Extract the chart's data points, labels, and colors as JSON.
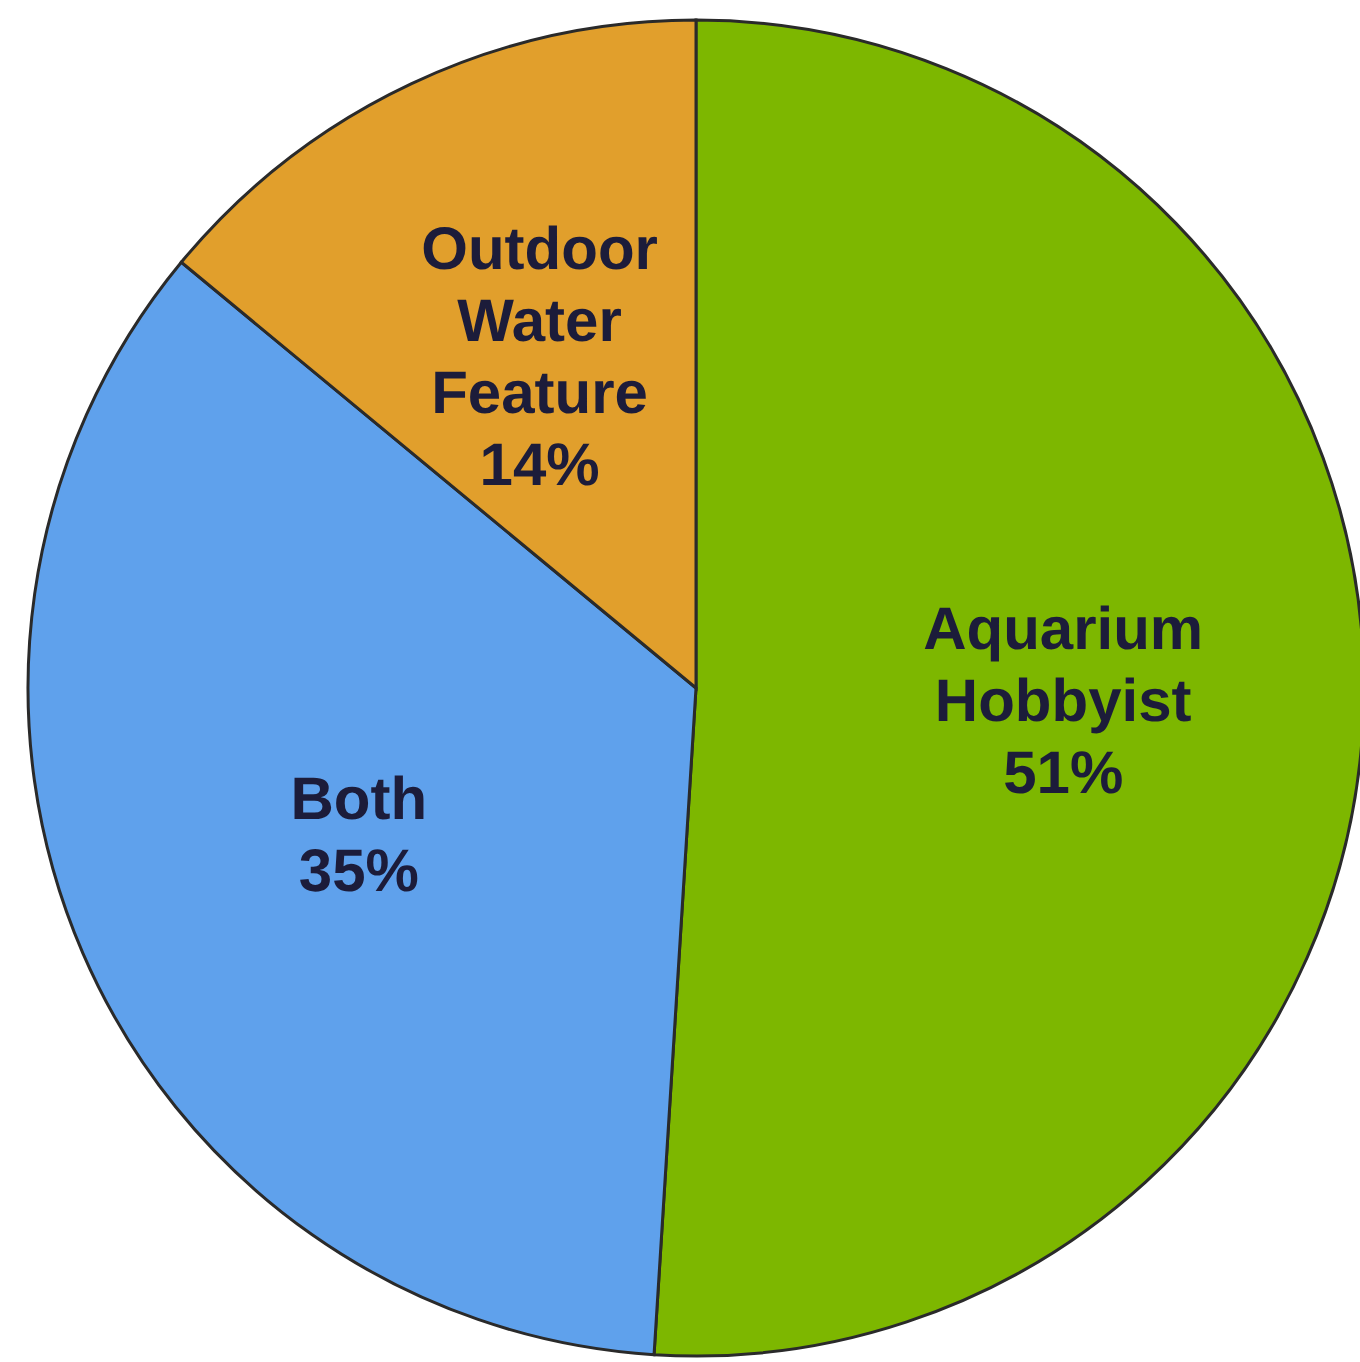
{
  "chart_data": {
    "type": "pie",
    "categories": [
      "Aquarium Hobbyist",
      "Both",
      "Outdoor Water Feature"
    ],
    "values": [
      51,
      35,
      14
    ],
    "colors": [
      "#7db700",
      "#5fa1ec",
      "#e19f2c"
    ],
    "value_labels": [
      "51%",
      "35%",
      "14%"
    ]
  }
}
